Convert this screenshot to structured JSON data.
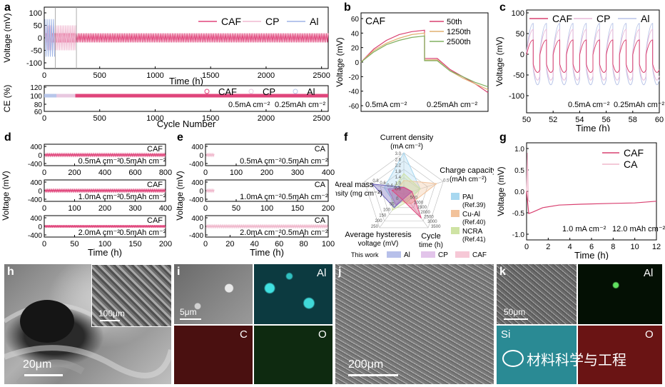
{
  "panel_labels": {
    "a": "a",
    "b": "b",
    "c": "c",
    "d": "d",
    "e": "e",
    "f": "f",
    "g": "g",
    "h": "h",
    "i": "i",
    "j": "j",
    "k": "k"
  },
  "chart_data": [
    {
      "id": "a_top",
      "type": "line",
      "ylabel": "Voltage (mV)",
      "xlabel": "Time (h)",
      "yticks": [
        "100",
        "50",
        "0",
        "-50",
        "-100"
      ],
      "ylim": [
        -120,
        120
      ],
      "xticks": [
        "0",
        "500",
        "1000",
        "1500",
        "2000",
        "2500"
      ],
      "xlim": [
        0,
        2560
      ],
      "legend": [
        "CAF",
        "CP",
        "Al"
      ],
      "series": [
        {
          "name": "CAF",
          "color": "#e0457b",
          "x_range": [
            0,
            2560
          ],
          "amplitude_mV": 22
        },
        {
          "name": "CP",
          "color": "#f0b8d0",
          "x_range": [
            0,
            290
          ],
          "amplitude_mV": 60
        },
        {
          "name": "Al",
          "color": "#9fb4e6",
          "x_range": [
            0,
            100
          ],
          "amplitude_mV": 90
        }
      ]
    },
    {
      "id": "a_bottom",
      "type": "scatter",
      "ylabel": "CE (%)",
      "xlabel": "Cycle Number",
      "yticks": [
        "120",
        "100",
        "80",
        "60"
      ],
      "ylim": [
        55,
        125
      ],
      "xticks": [
        "0",
        "500",
        "1000",
        "1500",
        "2000",
        "2500"
      ],
      "xlim": [
        0,
        2560
      ],
      "legend": [
        "CAF",
        "CP",
        "Al"
      ],
      "series": [
        {
          "name": "CAF",
          "color": "#e0457b",
          "value": 100,
          "x_range": [
            0,
            2560
          ]
        },
        {
          "name": "CP",
          "color": "#e8c8e0",
          "value": 100,
          "x_range": [
            0,
            280
          ]
        },
        {
          "name": "Al",
          "color": "#b7c6ea",
          "value": 100,
          "x_range": [
            0,
            110
          ]
        }
      ],
      "annotations": [
        "0.5mA cm⁻²",
        "0.25mAh cm⁻²"
      ]
    },
    {
      "id": "b",
      "type": "line",
      "title": "CAF",
      "ylabel": "Voltage (mV)",
      "yticks": [
        "60",
        "40",
        "20",
        "0",
        "-20",
        "-40",
        "-60"
      ],
      "ylim": [
        -70,
        70
      ],
      "legend": [
        "50th",
        "1250th",
        "2500th"
      ],
      "series": [
        {
          "name": "50th",
          "color": "#d94070"
        },
        {
          "name": "1250th",
          "color": "#e0b070"
        },
        {
          "name": "2500th",
          "color": "#80b060"
        }
      ],
      "annotations": [
        "0.5mA cm⁻²",
        "0.25mAh cm⁻²"
      ]
    },
    {
      "id": "c",
      "type": "line",
      "ylabel": "Voltage (mV)",
      "xlabel": "Time (h)",
      "yticks": [
        "100",
        "50",
        "0",
        "-50",
        "-100"
      ],
      "ylim": [
        -120,
        110
      ],
      "xticks": [
        "50",
        "52",
        "54",
        "56",
        "58",
        "60"
      ],
      "xlim": [
        50,
        60
      ],
      "legend": [
        "CAF",
        "CP",
        "Al"
      ],
      "series": [
        {
          "name": "CAF",
          "color": "#d94070",
          "amplitude_mV": 45
        },
        {
          "name": "CP",
          "color": "#e8b8d8",
          "amplitude_mV": 70
        },
        {
          "name": "Al",
          "color": "#b8c4e8",
          "amplitude_mV": 85
        }
      ],
      "annotations": [
        "0.5mA cm⁻²",
        "0.25mAh cm⁻²"
      ]
    },
    {
      "id": "d",
      "type": "line",
      "ylabel": "Voltage (mV)",
      "xlabel": "Time (h)",
      "subplots": [
        {
          "label": "CAF",
          "current": "0.5mA cm⁻²",
          "capacity": "0.5mAh cm⁻²",
          "yticks": [
            "400",
            "0",
            "-400"
          ],
          "xticks": [
            "0",
            "200",
            "400",
            "600",
            "800"
          ],
          "xlim": [
            0,
            800
          ],
          "amplitude": 30,
          "color": "#e0457b"
        },
        {
          "label": "CAF",
          "current": "1.0mA cm⁻²",
          "capacity": "0.5mAh cm⁻²",
          "yticks": [
            "400",
            "0",
            "-400"
          ],
          "xticks": [
            "0",
            "100",
            "200",
            "300",
            "400"
          ],
          "xlim": [
            0,
            400
          ],
          "amplitude": 45,
          "color": "#e0457b"
        },
        {
          "label": "CAF",
          "current": "2.0mA cm⁻²",
          "capacity": "0.5mAh cm⁻²",
          "yticks": [
            "400",
            "0",
            "-400"
          ],
          "xticks": [
            "0",
            "50",
            "100",
            "150",
            "200"
          ],
          "xlim": [
            0,
            200
          ],
          "amplitude": 60,
          "color": "#e0457b"
        }
      ]
    },
    {
      "id": "e",
      "type": "line",
      "ylabel": "Voltage (mV)",
      "xlabel": "Time (h)",
      "subplots": [
        {
          "label": "CA",
          "current": "0.5mA cm⁻²",
          "capacity": "0.5mAh cm⁻²",
          "yticks": [
            "400",
            "0",
            "-400"
          ],
          "xticks": [
            "0",
            "100",
            "200",
            "300",
            "400"
          ],
          "xlim": [
            0,
            400
          ],
          "x_end": 30,
          "amplitude": 25,
          "color": "#f0b8cc"
        },
        {
          "label": "CA",
          "current": "1.0mA cm⁻²",
          "capacity": "0.5mAh cm⁻²",
          "yticks": [
            "400",
            "0",
            "-400"
          ],
          "xticks": [
            "0",
            "50",
            "100",
            "150",
            "200"
          ],
          "xlim": [
            0,
            200
          ],
          "x_end": 15,
          "amplitude": 25,
          "color": "#f0b8cc"
        },
        {
          "label": "CA",
          "current": "2.0mA cm⁻²",
          "capacity": "0.5mAh cm⁻²",
          "yticks": [
            "400",
            "0",
            "-400"
          ],
          "xticks": [
            "0",
            "20",
            "40",
            "60",
            "80",
            "100"
          ],
          "xlim": [
            0,
            100
          ],
          "x_end": 100,
          "amplitude": 30,
          "color": "#f0b8cc"
        }
      ]
    },
    {
      "id": "f",
      "type": "radar",
      "axes": [
        {
          "label": "Current density",
          "unit": "(mA cm⁻²)",
          "ticks": [
            "3.0",
            "2.6",
            "2.2",
            "1.8",
            "1.4",
            "1.0",
            "0.6"
          ]
        },
        {
          "label": "Charge capacity",
          "unit": "(mAh cm⁻²)",
          "ticks": [
            "0.5"
          ]
        },
        {
          "label": "Cycle",
          "unit": "time (h)",
          "ticks": [
            "3500",
            "3000",
            "2500",
            "2000",
            "1500",
            "1000",
            "500"
          ]
        },
        {
          "label": "Average hysteresis",
          "unit": "voltage (mV)",
          "ticks": [
            "250",
            "200",
            "150",
            "100",
            "50",
            "0"
          ]
        },
        {
          "label": "Areal mass",
          "unit": "density (mg cm⁻²)",
          "ticks": [
            "0.2",
            "0.4",
            "0.6",
            "0.8"
          ]
        }
      ],
      "legend_refs": [
        {
          "name": "PAI",
          "ref": "(Ref.39)",
          "color": "#a8d8f0"
        },
        {
          "name": "Cu-Al",
          "ref": "(Ref.40)",
          "color": "#f2c29a"
        },
        {
          "name": "NCRA",
          "ref": "(Ref.41)",
          "color": "#cfe3a4"
        }
      ],
      "legend_work": {
        "label": "This work",
        "items": [
          {
            "name": "Al",
            "color": "#b7c0ea"
          },
          {
            "name": "CP",
            "color": "#e2c4ea"
          },
          {
            "name": "CAF",
            "color": "#f6c8d6"
          }
        ]
      },
      "series": [
        {
          "name": "PAI",
          "color": "#a8d8f0",
          "values": [
            3.0,
            0.5,
            500,
            80,
            0.5
          ]
        },
        {
          "name": "Cu-Al",
          "color": "#f2c29a",
          "values": [
            1.0,
            1.0,
            1000,
            50,
            0.2
          ]
        },
        {
          "name": "NCRA",
          "color": "#cfe3a4",
          "values": [
            1.5,
            0.5,
            700,
            120,
            0.3
          ]
        },
        {
          "name": "Al",
          "color": "#6a60b8",
          "values": [
            0.5,
            0.25,
            100,
            100,
            0.8
          ]
        },
        {
          "name": "CP",
          "color": "#b070c0",
          "values": [
            0.5,
            0.25,
            280,
            80,
            0.4
          ]
        },
        {
          "name": "CAF",
          "color": "#e0457b",
          "values": [
            0.5,
            0.25,
            2500,
            30,
            0.3
          ]
        }
      ]
    },
    {
      "id": "g",
      "type": "line",
      "ylabel": "Voltage (mV)",
      "xlabel": "Time (h)",
      "yticks": [
        "1.0",
        "0.5",
        "0.0",
        "-0.5",
        "-1.0"
      ],
      "ylim": [
        -1.1,
        1.1
      ],
      "xticks": [
        "0",
        "2",
        "4",
        "6",
        "8",
        "10",
        "12"
      ],
      "xlim": [
        0,
        12
      ],
      "legend": [
        "CAF",
        "CA"
      ],
      "series": [
        {
          "name": "CAF",
          "color": "#d94070"
        },
        {
          "name": "CA",
          "color": "#f0b8cc"
        }
      ],
      "annotations": [
        "1.0 mA cm⁻²",
        "12.0 mAh cm⁻²"
      ]
    }
  ],
  "images": {
    "h": {
      "scale_main": "20μm",
      "scale_inset": "100μm"
    },
    "i": {
      "scale": "5μm",
      "maps": [
        "Al",
        "C",
        "O"
      ]
    },
    "j": {
      "scale": "200μm"
    },
    "k": {
      "scale": "50μm",
      "maps": [
        "Al",
        "Si",
        "O"
      ]
    }
  },
  "watermark": "材料科学与工程"
}
